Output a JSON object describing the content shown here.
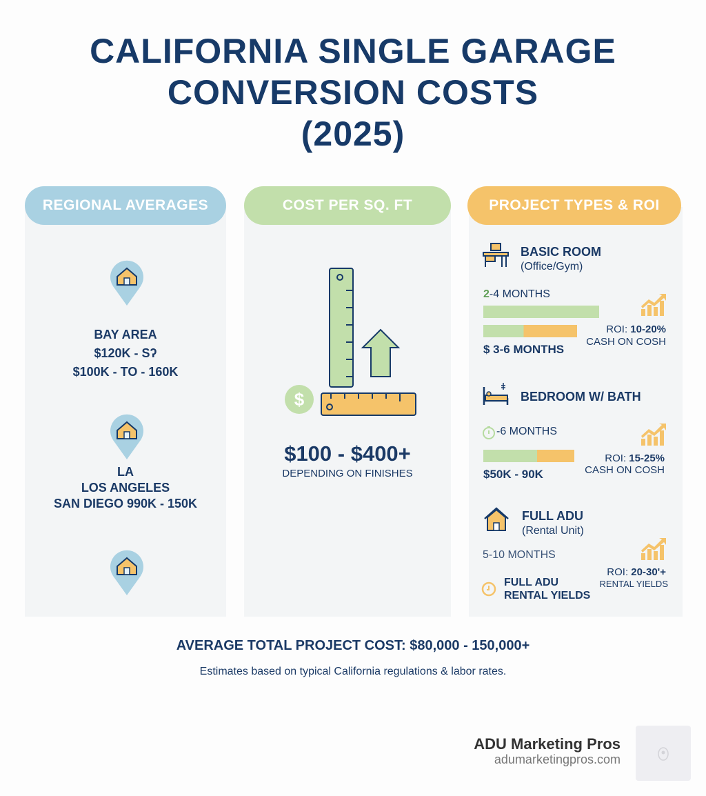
{
  "title": [
    "CALIFORNIA SINGLE GARAGE",
    "CONVERSION COSTS",
    "(2025)"
  ],
  "colors": {
    "navy": "#173a68",
    "blue": "#a9d1e2",
    "green": "#c2dfab",
    "orange": "#f5c36a"
  },
  "regional": {
    "header": "REGIONAL AVERAGES",
    "bay": [
      "BAY AREA",
      "$120K - Sʔ",
      "$100K - TO - 160K"
    ],
    "la": [
      "LA",
      "LOS ANGELES",
      "SAN DIEGO 990K - 150K"
    ]
  },
  "sqft": {
    "header": "COST PER SQ. FT",
    "price": "$100 - $400+",
    "note": "DEPENDING ON FINISHES"
  },
  "projects": {
    "header": "PROJECT TYPES & ROI",
    "items": [
      {
        "title": "BASIC ROOM",
        "subtitle": "(Office/Gym)",
        "timeline_a": "2",
        "timeline_b": "-4 MONTHS",
        "cost": "$ 3-6 MONTHS",
        "roi_label": "ROI:",
        "roi": "10-20%",
        "roi_note": "CASH ON COSH",
        "bar_green": 0.37,
        "bar_orange": 0.34
      },
      {
        "title": "BEDROOM W/ BATH",
        "timeline": "-6 MONTHS",
        "cost": "$50K - 90K",
        "roi_label": "ROI:",
        "roi": "15-25%",
        "roi_note": "CASH ON COSH",
        "bar_green": 0.59,
        "bar_orange": 0.41
      },
      {
        "title": "FULL ADU",
        "subtitle": "(Rental Unit)",
        "timeline": "5-10 MONTHS",
        "cost": "FULL ADU",
        "cost2": "RENTAL YIELDS",
        "roi_label": "ROI:",
        "roi": "20-30'+",
        "roi_note": "RENTAL YIELDS"
      }
    ]
  },
  "footer": {
    "total": "AVERAGE TOTAL PROJECT COST: $80,000 - 150,000+",
    "note": "Estimates based on typical California regulations & labor rates."
  },
  "brand": {
    "name": "ADU Marketing Pros",
    "url": "adumarketingpros.com"
  }
}
